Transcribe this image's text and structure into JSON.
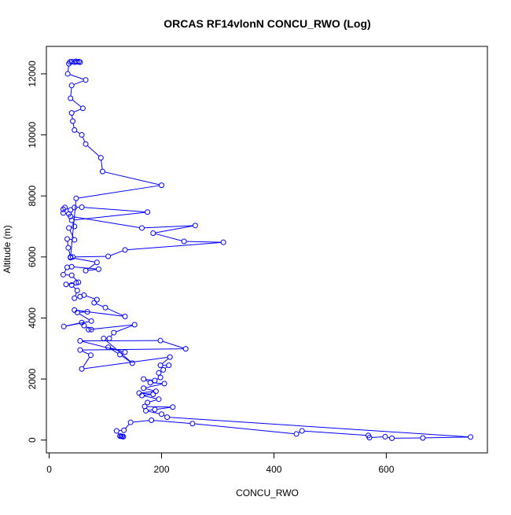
{
  "chart_data": {
    "type": "line",
    "title": "ORCAS RF14vlonN CONCU_RWO (Log)",
    "xlabel": "CONCU_RWO",
    "ylabel": "Altitude (m)",
    "xlim": [
      -5,
      780
    ],
    "ylim": [
      -420,
      12900
    ],
    "x_ticks": [
      0,
      200,
      400,
      600
    ],
    "y_ticks": [
      0,
      2000,
      4000,
      6000,
      8000,
      10000,
      12000
    ],
    "grid": false,
    "legend": "none",
    "marker": "open-circle",
    "colors": {
      "series": "#0000ff",
      "axis": "#000000"
    },
    "series": [
      {
        "points": [
          [
            130,
            120
          ],
          [
            128,
            125
          ],
          [
            132,
            110
          ],
          [
            126,
            130
          ],
          [
            120,
            300
          ],
          [
            133,
            320
          ],
          [
            145,
            580
          ],
          [
            182,
            650
          ],
          [
            255,
            540
          ],
          [
            440,
            200
          ],
          [
            450,
            300
          ],
          [
            568,
            150
          ],
          [
            570,
            80
          ],
          [
            598,
            110
          ],
          [
            610,
            60
          ],
          [
            665,
            70
          ],
          [
            750,
            100
          ],
          [
            210,
            750
          ],
          [
            200,
            850
          ],
          [
            172,
            960
          ],
          [
            188,
            1000
          ],
          [
            220,
            1080
          ],
          [
            170,
            1100
          ],
          [
            175,
            1230
          ],
          [
            195,
            1340
          ],
          [
            165,
            1460
          ],
          [
            185,
            1500
          ],
          [
            160,
            1540
          ],
          [
            190,
            1600
          ],
          [
            168,
            1700
          ],
          [
            205,
            1850
          ],
          [
            180,
            1880
          ],
          [
            168,
            2000
          ],
          [
            188,
            1950
          ],
          [
            198,
            2050
          ],
          [
            195,
            2200
          ],
          [
            203,
            2300
          ],
          [
            213,
            2450
          ],
          [
            198,
            2450
          ],
          [
            215,
            2720
          ],
          [
            58,
            2330
          ],
          [
            74,
            2780
          ],
          [
            55,
            2950
          ],
          [
            243,
            2990
          ],
          [
            198,
            3260
          ],
          [
            55,
            3250
          ],
          [
            135,
            2880
          ],
          [
            105,
            3040
          ],
          [
            126,
            2800
          ],
          [
            148,
            2520
          ],
          [
            97,
            3330
          ],
          [
            107,
            3330
          ],
          [
            115,
            3520
          ],
          [
            152,
            3780
          ],
          [
            70,
            3620
          ],
          [
            75,
            3620
          ],
          [
            62,
            3750
          ],
          [
            58,
            3850
          ],
          [
            26,
            3720
          ],
          [
            75,
            3900
          ],
          [
            50,
            4180
          ],
          [
            68,
            4200
          ],
          [
            45,
            4260
          ],
          [
            135,
            4050
          ],
          [
            100,
            4340
          ],
          [
            80,
            4500
          ],
          [
            85,
            4600
          ],
          [
            62,
            4750
          ],
          [
            55,
            4700
          ],
          [
            45,
            4650
          ],
          [
            50,
            4900
          ],
          [
            40,
            5080
          ],
          [
            30,
            5100
          ],
          [
            48,
            5150
          ],
          [
            52,
            5170
          ],
          [
            40,
            5400
          ],
          [
            25,
            5420
          ],
          [
            32,
            5660
          ],
          [
            40,
            5680
          ],
          [
            88,
            5600
          ],
          [
            65,
            5550
          ],
          [
            85,
            5820
          ],
          [
            38,
            5980
          ],
          [
            42,
            6000
          ],
          [
            105,
            6020
          ],
          [
            135,
            6230
          ],
          [
            310,
            6480
          ],
          [
            240,
            6510
          ],
          [
            185,
            6780
          ],
          [
            260,
            7030
          ],
          [
            165,
            6950
          ],
          [
            38,
            7330
          ],
          [
            35,
            7410
          ],
          [
            25,
            7440
          ],
          [
            25,
            7560
          ],
          [
            28,
            7620
          ],
          [
            38,
            7540
          ],
          [
            45,
            7620
          ],
          [
            58,
            7630
          ],
          [
            175,
            7470
          ],
          [
            40,
            7200
          ],
          [
            45,
            7000
          ],
          [
            35,
            6950
          ],
          [
            45,
            6560
          ],
          [
            32,
            6590
          ],
          [
            34,
            6300
          ],
          [
            38,
            6000
          ],
          [
            48,
            7920
          ],
          [
            200,
            8350
          ],
          [
            95,
            8800
          ],
          [
            92,
            9250
          ],
          [
            65,
            9700
          ],
          [
            58,
            10000
          ],
          [
            45,
            10160
          ],
          [
            42,
            10450
          ],
          [
            40,
            10720
          ],
          [
            60,
            10870
          ],
          [
            38,
            11200
          ],
          [
            40,
            11620
          ],
          [
            65,
            11800
          ],
          [
            33,
            12000
          ],
          [
            35,
            12330
          ],
          [
            37,
            12390
          ],
          [
            40,
            12400
          ],
          [
            45,
            12380
          ],
          [
            47,
            12410
          ],
          [
            50,
            12390
          ],
          [
            53,
            12400
          ],
          [
            55,
            12380
          ]
        ]
      }
    ]
  }
}
